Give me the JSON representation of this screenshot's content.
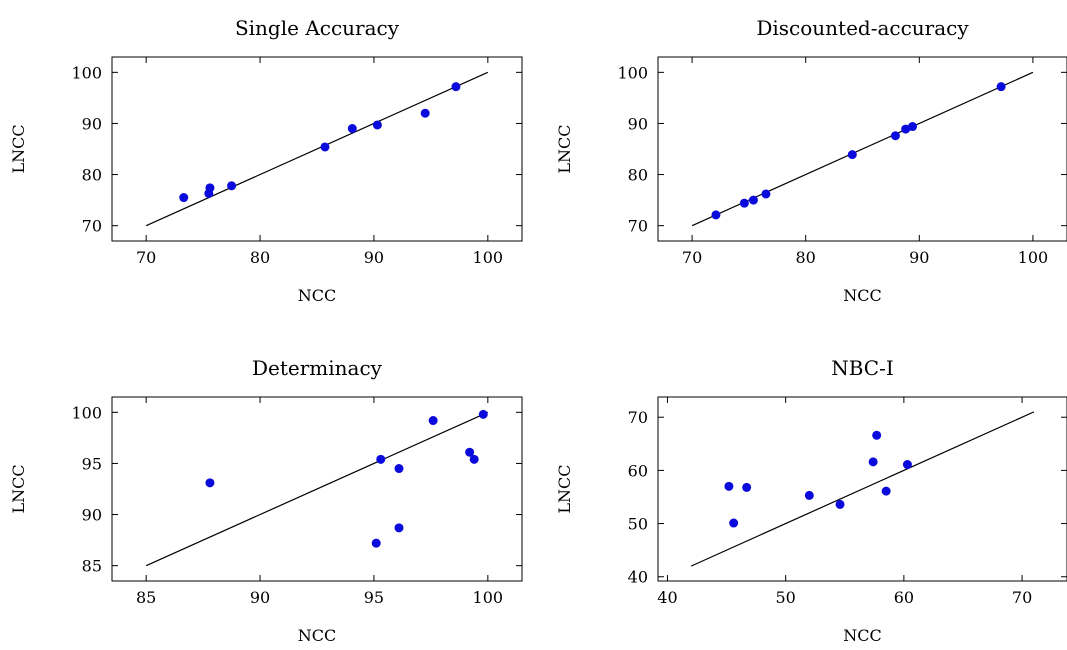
{
  "chart_data": [
    {
      "type": "scatter",
      "title": "Single Accuracy",
      "xlabel": "NCC",
      "ylabel": "LNCC",
      "xlim": [
        67,
        103
      ],
      "ylim": [
        67,
        103
      ],
      "xticks": [
        70,
        80,
        90,
        100
      ],
      "yticks": [
        70,
        80,
        90,
        100
      ],
      "reference_line": [
        [
          70,
          70
        ],
        [
          100,
          100
        ]
      ],
      "points": [
        {
          "x": 73.3,
          "y": 75.5
        },
        {
          "x": 75.5,
          "y": 76.3
        },
        {
          "x": 75.6,
          "y": 77.4
        },
        {
          "x": 77.5,
          "y": 77.8
        },
        {
          "x": 85.7,
          "y": 85.4
        },
        {
          "x": 88.1,
          "y": 89.0
        },
        {
          "x": 90.3,
          "y": 89.7
        },
        {
          "x": 94.5,
          "y": 92.0
        },
        {
          "x": 97.2,
          "y": 97.2
        }
      ],
      "grid": false,
      "marker_color": "#0a0adc"
    },
    {
      "type": "scatter",
      "title": "Discounted-accuracy",
      "xlabel": "NCC",
      "ylabel": "LNCC",
      "xlim": [
        67,
        103
      ],
      "ylim": [
        67,
        103
      ],
      "xticks": [
        70,
        80,
        90,
        100
      ],
      "yticks": [
        70,
        80,
        90,
        100
      ],
      "reference_line": [
        [
          70,
          70
        ],
        [
          100,
          100
        ]
      ],
      "points": [
        {
          "x": 72.1,
          "y": 72.1
        },
        {
          "x": 74.6,
          "y": 74.4
        },
        {
          "x": 75.4,
          "y": 75.0
        },
        {
          "x": 76.5,
          "y": 76.2
        },
        {
          "x": 84.1,
          "y": 83.9
        },
        {
          "x": 87.9,
          "y": 87.6
        },
        {
          "x": 88.8,
          "y": 88.9
        },
        {
          "x": 89.4,
          "y": 89.4
        },
        {
          "x": 97.2,
          "y": 97.2
        }
      ],
      "grid": false,
      "marker_color": "#0a0adc"
    },
    {
      "type": "scatter",
      "title": "Determinacy",
      "xlabel": "NCC",
      "ylabel": "LNCC",
      "xlim": [
        83.5,
        101.5
      ],
      "ylim": [
        83.5,
        101.5
      ],
      "xticks": [
        85,
        90,
        95,
        100
      ],
      "yticks": [
        85,
        90,
        95,
        100
      ],
      "reference_line": [
        [
          85,
          85
        ],
        [
          100,
          100
        ]
      ],
      "points": [
        {
          "x": 87.8,
          "y": 93.1
        },
        {
          "x": 95.1,
          "y": 87.2
        },
        {
          "x": 95.3,
          "y": 95.4
        },
        {
          "x": 96.1,
          "y": 94.5
        },
        {
          "x": 96.1,
          "y": 88.7
        },
        {
          "x": 97.6,
          "y": 99.2
        },
        {
          "x": 99.2,
          "y": 96.1
        },
        {
          "x": 99.4,
          "y": 95.4
        },
        {
          "x": 99.8,
          "y": 99.8
        }
      ],
      "grid": false,
      "marker_color": "#0a0adc"
    },
    {
      "type": "scatter",
      "title": "NBC-I",
      "xlabel": "NCC",
      "ylabel": "LNCC",
      "xlim": [
        39.2,
        73.8
      ],
      "ylim": [
        39.2,
        73.8
      ],
      "xticks": [
        40,
        50,
        60,
        70
      ],
      "yticks": [
        40,
        50,
        60,
        70
      ],
      "reference_line": [
        [
          42,
          42
        ],
        [
          71,
          71
        ]
      ],
      "points": [
        {
          "x": 45.2,
          "y": 57.0
        },
        {
          "x": 45.6,
          "y": 50.1
        },
        {
          "x": 46.7,
          "y": 56.8
        },
        {
          "x": 52.0,
          "y": 55.3
        },
        {
          "x": 54.6,
          "y": 53.6
        },
        {
          "x": 57.4,
          "y": 61.6
        },
        {
          "x": 57.7,
          "y": 66.6
        },
        {
          "x": 58.5,
          "y": 56.1
        },
        {
          "x": 60.3,
          "y": 61.1
        }
      ],
      "grid": false,
      "marker_color": "#0a0adc"
    }
  ]
}
